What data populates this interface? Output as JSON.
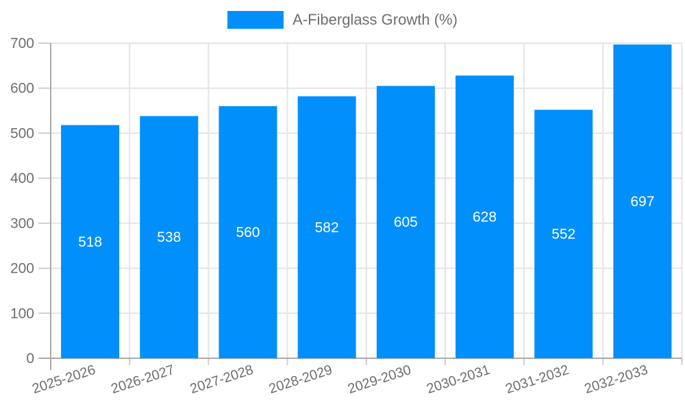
{
  "legend": {
    "label": "A-Fiberglass Growth (%)"
  },
  "chart_data": {
    "type": "bar",
    "title": "",
    "categories": [
      "2025-2026",
      "2026-2027",
      "2027-2028",
      "2028-2029",
      "2029-2030",
      "2030-2031",
      "2031-2032",
      "2032-2033"
    ],
    "series": [
      {
        "name": "A-Fiberglass Growth (%)",
        "values": [
          518,
          538,
          560,
          582,
          605,
          628,
          552,
          697
        ]
      }
    ],
    "value_labels_shown": true,
    "xlabel": "",
    "ylabel": "",
    "ylim": [
      0,
      700
    ],
    "yticks": [
      0,
      100,
      200,
      300,
      400,
      500,
      600,
      700
    ],
    "grid": true,
    "legend_position": "top",
    "x_label_rotation_deg": -18,
    "colors": {
      "bar": "#008FFB",
      "value_label": "#FFFFFF",
      "axis_text": "#6E6E6E",
      "grid_line": "#E4E4E4",
      "tick_line": "#CFCFCF",
      "axis_line": "#A9A9A9",
      "background": "#FFFFFF"
    }
  }
}
